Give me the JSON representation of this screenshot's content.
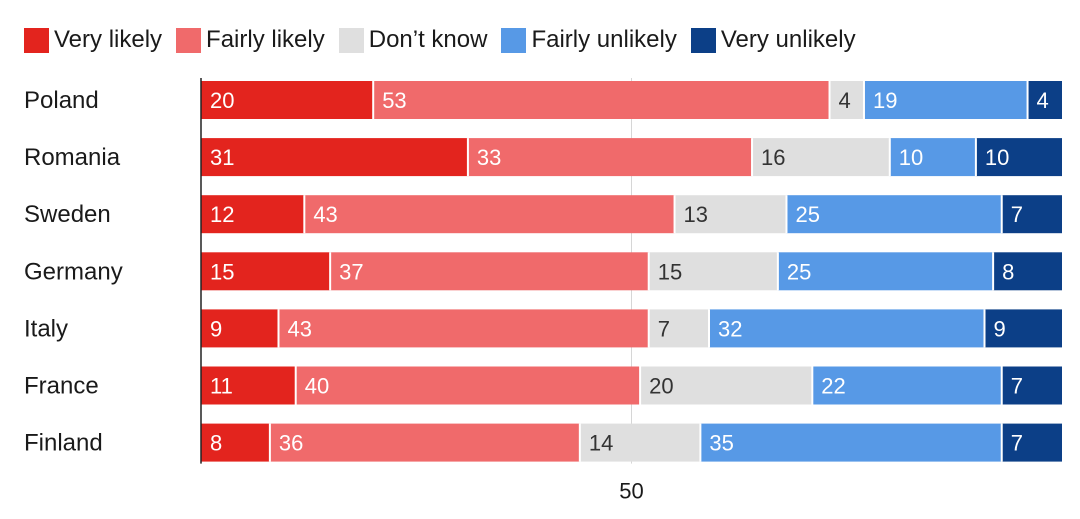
{
  "colors": {
    "very_likely": "#e3241e",
    "fairly_likely": "#f06a6b",
    "dont_know": "#dfdfdf",
    "fairly_unlikely": "#5799e6",
    "very_unlikely": "#0c3f87"
  },
  "chart_data": {
    "type": "bar",
    "orientation": "horizontal",
    "stacked": true,
    "categories": [
      "Poland",
      "Romania",
      "Sweden",
      "Germany",
      "Italy",
      "France",
      "Finland"
    ],
    "series": [
      {
        "name": "Very likely",
        "values": [
          20,
          31,
          12,
          15,
          9,
          11,
          8
        ]
      },
      {
        "name": "Fairly likely",
        "values": [
          53,
          33,
          43,
          37,
          43,
          40,
          36
        ]
      },
      {
        "name": "Don’t know",
        "values": [
          4,
          16,
          13,
          15,
          7,
          20,
          14
        ]
      },
      {
        "name": "Fairly unlikely",
        "values": [
          19,
          10,
          25,
          25,
          32,
          22,
          35
        ]
      },
      {
        "name": "Very unlikely",
        "values": [
          4,
          10,
          7,
          8,
          9,
          7,
          7
        ]
      }
    ],
    "xlim": [
      0,
      100
    ],
    "x_tick_labels": [
      "50"
    ],
    "gridline_at": 50,
    "legend_position": "top"
  }
}
